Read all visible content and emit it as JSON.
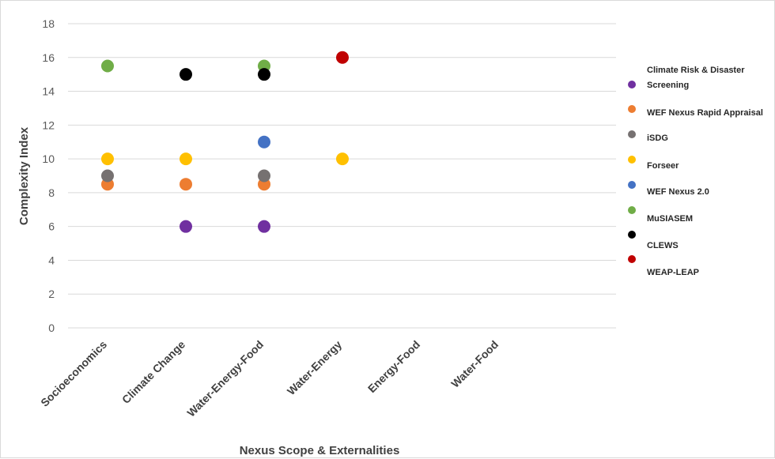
{
  "chart_data": {
    "type": "scatter",
    "title": "",
    "xlabel": "Nexus Scope & Externalities",
    "ylabel": "Complexity Index",
    "categories": [
      "Socioeconomics",
      "Climate Change",
      "Water-Energy-Food",
      "Water-Energy",
      "Energy-Food",
      "Water-Food"
    ],
    "ylim": [
      0,
      18
    ],
    "yticks": [
      0,
      2,
      4,
      6,
      8,
      10,
      12,
      14,
      16,
      18
    ],
    "grid": true,
    "legend_position": "right",
    "series": [
      {
        "name": "Climate Risk & Disaster Screening",
        "color": "#7030a0",
        "points": [
          {
            "x": "Climate Change",
            "y": 6
          },
          {
            "x": "Water-Energy-Food",
            "y": 6
          }
        ]
      },
      {
        "name": "WEF Nexus Rapid Appraisal",
        "color": "#ed7d31",
        "points": [
          {
            "x": "Socioeconomics",
            "y": 8.5
          },
          {
            "x": "Climate Change",
            "y": 8.5
          },
          {
            "x": "Water-Energy-Food",
            "y": 8.5
          }
        ]
      },
      {
        "name": "iSDG",
        "color": "#767171",
        "points": [
          {
            "x": "Socioeconomics",
            "y": 9
          },
          {
            "x": "Water-Energy-Food",
            "y": 9
          }
        ]
      },
      {
        "name": "Forseer",
        "color": "#ffc000",
        "points": [
          {
            "x": "Socioeconomics",
            "y": 10
          },
          {
            "x": "Climate Change",
            "y": 10
          },
          {
            "x": "Water-Energy",
            "y": 10
          }
        ]
      },
      {
        "name": "WEF Nexus 2.0",
        "color": "#4472c4",
        "points": [
          {
            "x": "Water-Energy-Food",
            "y": 11
          }
        ]
      },
      {
        "name": "MuSIASEM",
        "color": "#70ad47",
        "points": [
          {
            "x": "Socioeconomics",
            "y": 15.5
          },
          {
            "x": "Water-Energy-Food",
            "y": 15.5
          }
        ]
      },
      {
        "name": "CLEWS",
        "color": "#000000",
        "points": [
          {
            "x": "Climate Change",
            "y": 15
          },
          {
            "x": "Water-Energy-Food",
            "y": 15
          }
        ]
      },
      {
        "name": "WEAP-LEAP",
        "color": "#c00000",
        "points": [
          {
            "x": "Water-Energy",
            "y": 16
          }
        ]
      }
    ]
  }
}
